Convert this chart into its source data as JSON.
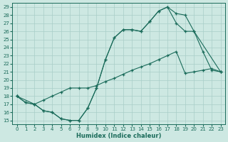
{
  "xlabel": "Humidex (Indice chaleur)",
  "xlim": [
    -0.5,
    23.5
  ],
  "ylim": [
    14.5,
    29.5
  ],
  "xticks": [
    0,
    1,
    2,
    3,
    4,
    5,
    6,
    7,
    8,
    9,
    10,
    11,
    12,
    13,
    14,
    15,
    16,
    17,
    18,
    19,
    20,
    21,
    22,
    23
  ],
  "yticks": [
    15,
    16,
    17,
    18,
    19,
    20,
    21,
    22,
    23,
    24,
    25,
    26,
    27,
    28,
    29
  ],
  "bg_color": "#cde8e2",
  "line_color": "#1a6b5a",
  "grid_color": "#a8cec8",
  "line1_x": [
    0,
    1,
    2,
    3,
    4,
    5,
    6,
    7,
    8,
    9,
    10,
    11,
    12,
    13,
    14,
    15,
    16,
    17,
    18,
    19,
    20,
    21,
    22,
    23
  ],
  "line1_y": [
    18.0,
    17.2,
    17.0,
    16.2,
    16.0,
    15.2,
    15.0,
    15.0,
    16.5,
    19.0,
    22.5,
    25.2,
    26.2,
    26.2,
    26.0,
    27.2,
    28.5,
    29.0,
    28.2,
    28.0,
    26.0,
    23.5,
    21.2,
    21.0
  ],
  "line2_x": [
    0,
    2,
    3,
    4,
    5,
    6,
    7,
    8,
    9,
    10,
    11,
    12,
    13,
    14,
    15,
    16,
    17,
    18,
    19,
    20,
    21,
    22,
    23
  ],
  "line2_y": [
    18.0,
    17.0,
    17.5,
    18.0,
    18.5,
    19.0,
    19.0,
    19.0,
    19.3,
    19.8,
    20.2,
    20.7,
    21.2,
    21.6,
    22.0,
    22.5,
    23.0,
    23.5,
    20.8,
    21.0,
    21.2,
    21.4,
    21.0
  ],
  "line3_x": [
    0,
    1,
    2,
    3,
    4,
    5,
    6,
    7,
    8,
    9,
    10,
    11,
    12,
    13,
    14,
    15,
    16,
    17,
    18,
    19,
    20,
    23
  ],
  "line3_y": [
    18.0,
    17.2,
    17.0,
    16.2,
    16.0,
    15.2,
    15.0,
    15.0,
    16.5,
    19.0,
    22.5,
    25.2,
    26.2,
    26.2,
    26.0,
    27.2,
    28.5,
    29.0,
    27.0,
    26.0,
    26.0,
    21.0
  ]
}
